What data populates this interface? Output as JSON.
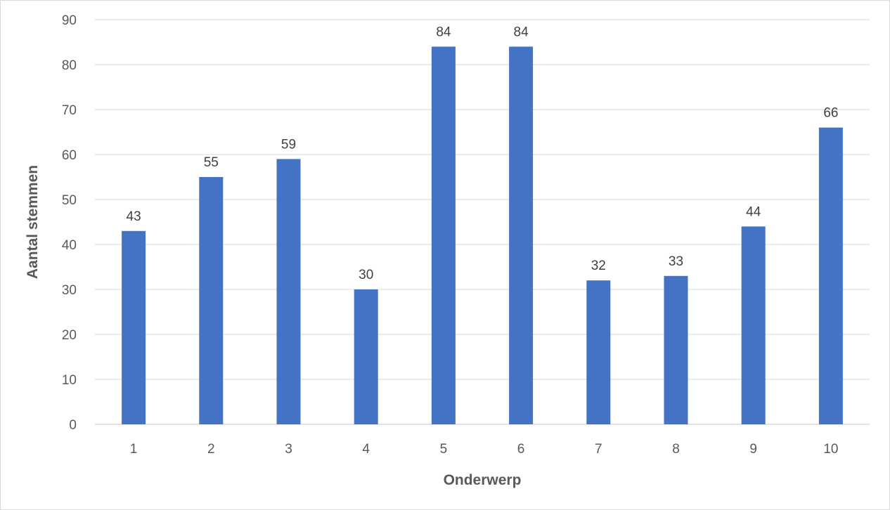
{
  "chart_data": {
    "type": "bar",
    "categories": [
      "1",
      "2",
      "3",
      "4",
      "5",
      "6",
      "7",
      "8",
      "9",
      "10"
    ],
    "values": [
      43,
      55,
      59,
      30,
      84,
      84,
      32,
      33,
      44,
      66
    ],
    "title": "",
    "xlabel": "Onderwerp",
    "ylabel": "Aantal stemmen",
    "ylim": [
      0,
      90
    ],
    "yticks": [
      0,
      10,
      20,
      30,
      40,
      50,
      60,
      70,
      80,
      90
    ],
    "grid": true,
    "data_labels": true,
    "legend": "none",
    "bar_color": "#4472c4",
    "grid_color": "#d9d9d9",
    "tick_color": "#595959",
    "label_color": "#404040"
  }
}
